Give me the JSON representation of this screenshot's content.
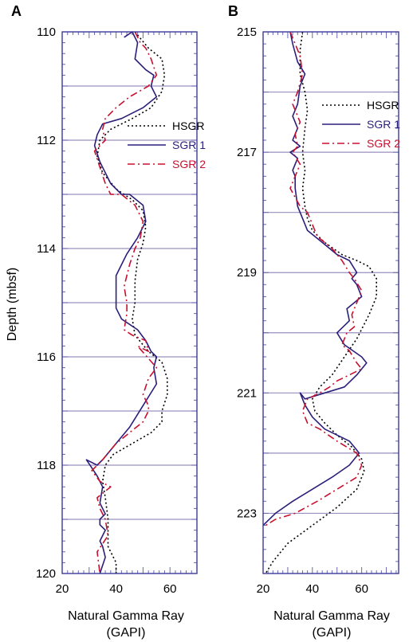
{
  "chart_data": [
    {
      "type": "line",
      "panel_label": "A",
      "ylabel": "Depth (mbsf)",
      "xlabel_line1": "Natural Gamma Ray",
      "xlabel_line2": "(GAPI)",
      "xlim": [
        20,
        70
      ],
      "ylim": [
        110,
        120
      ],
      "y_inverted": true,
      "x_ticks": [
        "20",
        "40",
        "60"
      ],
      "y_ticks": [
        "110",
        "112",
        "114",
        "116",
        "118",
        "120"
      ],
      "gridlines_y": [
        111,
        112,
        113,
        114,
        115,
        116,
        117,
        118,
        119
      ],
      "legend_position": "right, upper-middle",
      "series": [
        {
          "name": "HSGR",
          "color": "#000000",
          "dash": "dotted",
          "x": [
            47,
            52,
            57,
            58,
            57,
            53,
            46,
            38,
            34,
            33,
            35,
            40,
            46,
            50,
            51,
            50,
            48,
            47,
            47,
            46,
            47,
            52,
            57,
            59,
            59,
            57,
            57,
            53,
            46,
            39,
            36,
            35,
            36,
            37,
            37,
            37,
            38,
            40,
            40
          ],
          "y": [
            110.0,
            110.3,
            110.5,
            110.8,
            111.1,
            111.4,
            111.6,
            111.8,
            112.0,
            112.3,
            112.6,
            112.9,
            113.1,
            113.3,
            113.6,
            113.9,
            114.2,
            114.6,
            115.0,
            115.3,
            115.6,
            115.9,
            116.1,
            116.4,
            116.7,
            117.0,
            117.2,
            117.4,
            117.6,
            117.8,
            118.0,
            118.3,
            118.6,
            119.0,
            119.3,
            119.5,
            119.6,
            119.8,
            120.0
          ]
        },
        {
          "name": "SGR 1",
          "color": "#2a1f7a",
          "dash": "solid",
          "x": [
            43,
            46,
            48,
            47,
            51,
            54,
            53,
            55,
            50,
            42,
            35,
            33,
            32,
            34,
            38,
            42,
            45,
            50,
            51,
            48,
            44,
            43,
            40,
            40,
            40,
            42,
            48,
            51,
            53,
            55,
            54,
            55,
            50,
            45,
            40,
            35,
            33,
            29,
            33,
            35,
            34,
            36,
            34,
            34,
            36,
            34,
            35,
            36,
            34
          ],
          "y": [
            110.1,
            110.0,
            110.2,
            110.5,
            110.7,
            110.8,
            111.0,
            111.2,
            111.4,
            111.6,
            111.7,
            111.9,
            112.1,
            112.4,
            112.8,
            113.0,
            113.0,
            113.2,
            113.5,
            113.8,
            114.1,
            114.2,
            114.5,
            114.8,
            115.1,
            115.3,
            115.5,
            115.7,
            115.9,
            116.0,
            116.2,
            116.5,
            116.9,
            117.3,
            117.6,
            117.9,
            118.0,
            117.9,
            118.2,
            118.4,
            118.7,
            118.9,
            119.0,
            119.1,
            119.2,
            119.4,
            119.5,
            119.7,
            120.0
          ]
        },
        {
          "name": "SGR 2",
          "color": "#c8102e",
          "dash": "dashdot",
          "x": [
            47,
            49,
            51,
            53,
            55,
            52,
            45,
            40,
            36,
            35,
            36,
            32,
            34,
            36,
            38,
            42,
            47,
            50,
            49,
            47,
            45,
            43,
            44,
            44,
            43,
            46,
            51,
            52,
            48,
            55,
            52,
            50,
            52,
            52,
            50,
            45,
            40,
            35,
            33,
            31,
            34,
            38,
            33,
            34,
            36,
            37,
            33,
            34
          ],
          "y": [
            110.0,
            110.2,
            110.3,
            110.5,
            110.8,
            111.0,
            111.2,
            111.4,
            111.6,
            111.8,
            112.0,
            112.2,
            112.5,
            112.8,
            113.0,
            113.0,
            113.2,
            113.5,
            113.8,
            114.0,
            114.3,
            114.7,
            115.0,
            115.2,
            115.5,
            115.6,
            115.7,
            115.9,
            115.8,
            116.2,
            116.4,
            116.7,
            116.9,
            117.0,
            117.2,
            117.4,
            117.6,
            117.9,
            118.0,
            118.1,
            118.3,
            118.4,
            118.6,
            118.8,
            119.0,
            119.3,
            119.6,
            120.0
          ]
        }
      ]
    },
    {
      "type": "line",
      "panel_label": "B",
      "ylabel": "",
      "xlabel_line1": "Natural Gamma Ray",
      "xlabel_line2": "(GAPI)",
      "xlim": [
        20,
        75
      ],
      "ylim": [
        215,
        224
      ],
      "y_inverted": true,
      "x_ticks": [
        "20",
        "40",
        "60"
      ],
      "y_ticks": [
        "215",
        "217",
        "219",
        "221",
        "223"
      ],
      "gridlines_y": [
        216,
        217,
        218,
        219,
        220,
        221,
        222,
        223
      ],
      "legend_position": "right, upper",
      "series": [
        {
          "name": "HSGR",
          "color": "#000000",
          "dash": "dotted",
          "x": [
            36,
            35,
            35,
            37,
            38,
            37,
            36,
            37,
            36,
            37,
            38,
            40,
            45,
            52,
            58,
            63,
            66,
            66,
            63,
            58,
            53,
            48,
            43,
            40,
            41,
            45,
            50,
            56,
            60,
            61,
            58,
            50,
            40,
            30,
            24,
            21
          ],
          "y": [
            215.0,
            215.3,
            215.7,
            216.0,
            216.3,
            216.6,
            217.0,
            217.3,
            217.6,
            217.9,
            218.1,
            218.3,
            218.5,
            218.7,
            218.8,
            218.9,
            219.1,
            219.4,
            219.7,
            220.1,
            220.4,
            220.7,
            220.9,
            221.1,
            221.3,
            221.5,
            221.7,
            221.9,
            222.1,
            222.3,
            222.6,
            222.9,
            223.2,
            223.5,
            223.8,
            224.0
          ]
        },
        {
          "name": "SGR 1",
          "color": "#2a1f7a",
          "dash": "solid",
          "x": [
            31,
            32,
            34,
            37,
            35,
            34,
            32,
            34,
            32,
            35,
            31,
            34,
            32,
            33,
            33,
            34,
            35,
            36,
            38,
            44,
            50,
            55,
            58,
            56,
            58,
            60,
            54,
            55,
            50,
            53,
            60,
            62,
            58,
            53,
            45,
            37,
            35,
            37,
            40,
            45,
            50,
            55,
            57,
            59,
            55,
            48,
            40,
            32,
            25,
            20
          ],
          "y": [
            215.0,
            215.2,
            215.5,
            215.7,
            215.9,
            216.2,
            216.4,
            216.6,
            216.8,
            216.9,
            217.0,
            217.1,
            217.3,
            217.4,
            217.6,
            217.9,
            218.0,
            218.1,
            218.3,
            218.5,
            218.7,
            218.8,
            219.0,
            219.1,
            219.2,
            219.4,
            219.6,
            219.8,
            220.0,
            220.2,
            220.4,
            220.5,
            220.7,
            220.9,
            221.0,
            221.1,
            221.0,
            221.2,
            221.4,
            221.6,
            221.7,
            221.8,
            221.9,
            222.0,
            222.2,
            222.4,
            222.6,
            222.8,
            223.0,
            223.2
          ]
        },
        {
          "name": "SGR 2",
          "color": "#c8102e",
          "dash": "dashdot",
          "x": [
            31,
            33,
            35,
            36,
            34,
            32,
            35,
            33,
            34,
            32,
            35,
            33,
            31,
            35,
            38,
            40,
            42,
            48,
            52,
            55,
            57,
            60,
            58,
            56,
            57,
            54,
            52,
            55,
            58,
            60,
            55,
            50,
            47,
            43,
            38,
            36,
            38,
            43,
            50,
            58,
            60,
            58,
            50,
            42,
            33,
            25,
            21
          ],
          "y": [
            215.0,
            215.2,
            215.4,
            215.7,
            216.0,
            216.2,
            216.5,
            216.7,
            216.9,
            217.0,
            217.2,
            217.4,
            217.6,
            217.9,
            218.0,
            218.2,
            218.4,
            218.6,
            218.8,
            219.0,
            219.1,
            219.3,
            219.5,
            219.7,
            219.9,
            220.0,
            220.2,
            220.3,
            220.5,
            220.6,
            220.7,
            220.8,
            220.9,
            221.0,
            221.1,
            221.3,
            221.5,
            221.6,
            221.8,
            222.0,
            222.2,
            222.4,
            222.6,
            222.8,
            223.0,
            223.1,
            223.2
          ]
        }
      ]
    }
  ]
}
